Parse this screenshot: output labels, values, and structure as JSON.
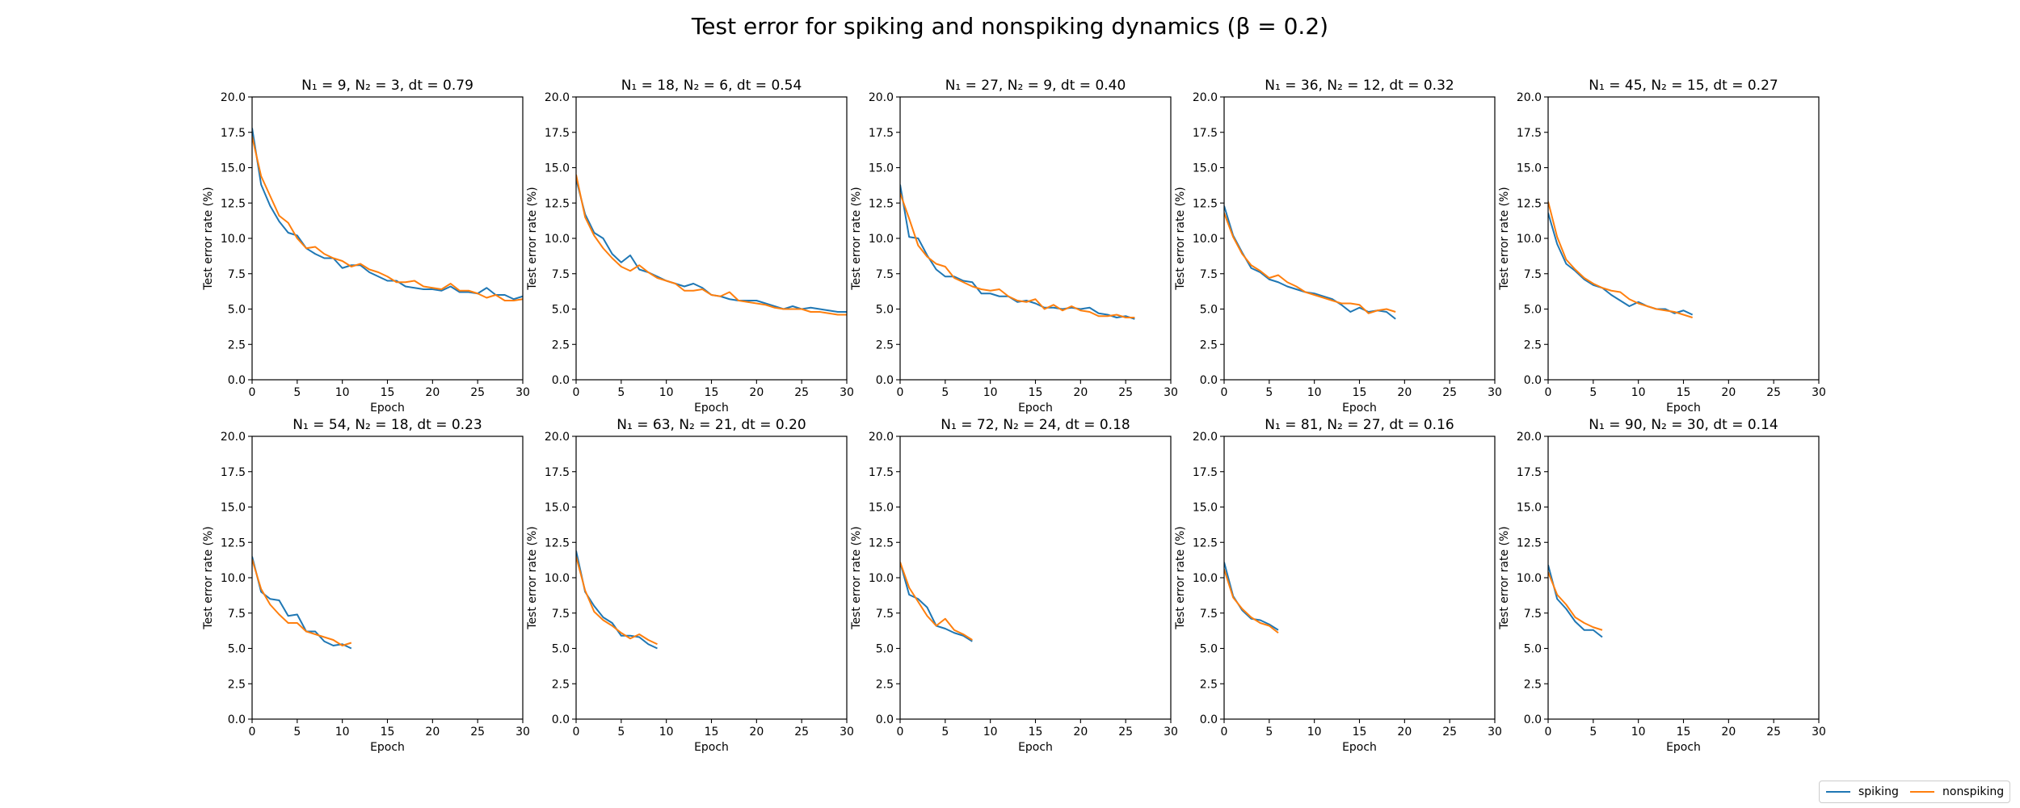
{
  "title": "Test error for spiking and nonspiking dynamics (β = 0.2)",
  "legend": {
    "placement": "lower-right",
    "entries": [
      {
        "name": "spiking",
        "color": "#1f77b4"
      },
      {
        "name": "nonspiking",
        "color": "#ff7f0e"
      }
    ]
  },
  "chart_data": [
    {
      "type": "line",
      "title": "N₁ = 9, N₂ = 3, dt = 0.79",
      "xlabel": "Epoch",
      "ylabel": "Test error rate (%)",
      "xlim": [
        0,
        30
      ],
      "ylim": [
        0,
        20
      ],
      "xticks": [
        0,
        5,
        10,
        15,
        20,
        25,
        30
      ],
      "yticks": [
        0,
        2.5,
        5,
        7.5,
        10,
        12.5,
        15,
        17.5,
        20
      ],
      "yticklabels": [
        "0.0",
        "2.5",
        "5.0",
        "7.5",
        "10.0",
        "12.5",
        "15.0",
        "17.5",
        "20.0"
      ],
      "series": [
        {
          "name": "spiking",
          "values": [
            17.8,
            13.8,
            12.3,
            11.2,
            10.4,
            10.2,
            9.3,
            8.9,
            8.6,
            8.6,
            7.9,
            8.1,
            8.1,
            7.6,
            7.3,
            7.0,
            7.0,
            6.6,
            6.5,
            6.4,
            6.4,
            6.3,
            6.6,
            6.2,
            6.2,
            6.1,
            6.5,
            6.0,
            6.0,
            5.7,
            5.9
          ]
        },
        {
          "name": "nonspiking",
          "values": [
            17.2,
            14.4,
            13.0,
            11.6,
            11.1,
            10.0,
            9.3,
            9.4,
            8.9,
            8.6,
            8.4,
            8.0,
            8.2,
            7.8,
            7.6,
            7.3,
            6.9,
            6.9,
            7.0,
            6.6,
            6.5,
            6.4,
            6.8,
            6.3,
            6.3,
            6.1,
            5.8,
            6.0,
            5.6,
            5.6,
            5.7
          ]
        }
      ]
    },
    {
      "type": "line",
      "title": "N₁ = 18, N₂ = 6, dt = 0.54",
      "xlabel": "Epoch",
      "ylabel": "Test error rate (%)",
      "xlim": [
        0,
        30
      ],
      "ylim": [
        0,
        20
      ],
      "xticks": [
        0,
        5,
        10,
        15,
        20,
        25,
        30
      ],
      "yticks": [
        0,
        2.5,
        5,
        7.5,
        10,
        12.5,
        15,
        17.5,
        20
      ],
      "yticklabels": [
        "0.0",
        "2.5",
        "5.0",
        "7.5",
        "10.0",
        "12.5",
        "15.0",
        "17.5",
        "20.0"
      ],
      "series": [
        {
          "name": "spiking",
          "values": [
            14.2,
            11.7,
            10.4,
            10.0,
            8.9,
            8.3,
            8.8,
            7.8,
            7.6,
            7.3,
            7.0,
            6.8,
            6.6,
            6.8,
            6.5,
            6.0,
            5.9,
            5.7,
            5.6,
            5.6,
            5.6,
            5.4,
            5.2,
            5.0,
            5.2,
            5.0,
            5.1,
            5.0,
            4.9,
            4.8,
            4.8
          ]
        },
        {
          "name": "nonspiking",
          "values": [
            14.5,
            11.5,
            10.2,
            9.3,
            8.6,
            8.0,
            7.7,
            8.1,
            7.6,
            7.2,
            7.0,
            6.8,
            6.3,
            6.3,
            6.4,
            6.0,
            5.9,
            6.2,
            5.6,
            5.5,
            5.4,
            5.3,
            5.1,
            5.0,
            5.0,
            5.0,
            4.8,
            4.8,
            4.7,
            4.6,
            4.6
          ]
        }
      ]
    },
    {
      "type": "line",
      "title": "N₁ = 27, N₂ = 9, dt = 0.40",
      "xlabel": "Epoch",
      "ylabel": "Test error rate (%)",
      "xlim": [
        0,
        30
      ],
      "ylim": [
        0,
        20
      ],
      "xticks": [
        0,
        5,
        10,
        15,
        20,
        25,
        30
      ],
      "yticks": [
        0,
        2.5,
        5,
        7.5,
        10,
        12.5,
        15,
        17.5,
        20
      ],
      "yticklabels": [
        "0.0",
        "2.5",
        "5.0",
        "7.5",
        "10.0",
        "12.5",
        "15.0",
        "17.5",
        "20.0"
      ],
      "series": [
        {
          "name": "spiking",
          "values": [
            13.8,
            10.1,
            10.0,
            8.8,
            7.8,
            7.3,
            7.3,
            7.0,
            6.9,
            6.1,
            6.1,
            5.9,
            5.9,
            5.5,
            5.6,
            5.4,
            5.1,
            5.1,
            5.0,
            5.1,
            5.0,
            5.1,
            4.7,
            4.6,
            4.4,
            4.5,
            4.3
          ]
        },
        {
          "name": "nonspiking",
          "values": [
            13.2,
            11.4,
            9.5,
            8.7,
            8.2,
            8.0,
            7.2,
            6.9,
            6.6,
            6.4,
            6.3,
            6.4,
            5.9,
            5.6,
            5.5,
            5.7,
            5.0,
            5.3,
            4.9,
            5.2,
            4.9,
            4.8,
            4.5,
            4.5,
            4.6,
            4.4,
            4.4
          ]
        }
      ]
    },
    {
      "type": "line",
      "title": "N₁ = 36, N₂ = 12, dt = 0.32",
      "xlabel": "Epoch",
      "ylabel": "Test error rate (%)",
      "xlim": [
        0,
        30
      ],
      "ylim": [
        0,
        20
      ],
      "xticks": [
        0,
        5,
        10,
        15,
        20,
        25,
        30
      ],
      "yticks": [
        0,
        2.5,
        5,
        7.5,
        10,
        12.5,
        15,
        17.5,
        20
      ],
      "yticklabels": [
        "0.0",
        "2.5",
        "5.0",
        "7.5",
        "10.0",
        "12.5",
        "15.0",
        "17.5",
        "20.0"
      ],
      "series": [
        {
          "name": "spiking",
          "values": [
            12.3,
            10.2,
            9.0,
            7.9,
            7.6,
            7.1,
            6.9,
            6.6,
            6.4,
            6.2,
            6.1,
            5.9,
            5.7,
            5.3,
            4.8,
            5.1,
            4.8,
            4.9,
            4.8,
            4.3
          ]
        },
        {
          "name": "nonspiking",
          "values": [
            11.8,
            10.1,
            8.9,
            8.1,
            7.7,
            7.2,
            7.4,
            6.9,
            6.6,
            6.2,
            6.0,
            5.8,
            5.6,
            5.4,
            5.4,
            5.3,
            4.7,
            4.9,
            5.0,
            4.8
          ]
        }
      ]
    },
    {
      "type": "line",
      "title": "N₁ = 45, N₂ = 15, dt = 0.27",
      "xlabel": "Epoch",
      "ylabel": "Test error rate (%)",
      "xlim": [
        0,
        30
      ],
      "ylim": [
        0,
        20
      ],
      "xticks": [
        0,
        5,
        10,
        15,
        20,
        25,
        30
      ],
      "yticks": [
        0,
        2.5,
        5,
        7.5,
        10,
        12.5,
        15,
        17.5,
        20
      ],
      "yticklabels": [
        "0.0",
        "2.5",
        "5.0",
        "7.5",
        "10.0",
        "12.5",
        "15.0",
        "17.5",
        "20.0"
      ],
      "series": [
        {
          "name": "spiking",
          "values": [
            11.8,
            9.6,
            8.2,
            7.7,
            7.1,
            6.7,
            6.5,
            6.0,
            5.6,
            5.2,
            5.5,
            5.2,
            5.0,
            5.0,
            4.7,
            4.9,
            4.6
          ]
        },
        {
          "name": "nonspiking",
          "values": [
            12.6,
            10.1,
            8.5,
            7.8,
            7.2,
            6.8,
            6.5,
            6.3,
            6.2,
            5.7,
            5.4,
            5.2,
            5.0,
            4.9,
            4.8,
            4.6,
            4.4
          ]
        }
      ]
    },
    {
      "type": "line",
      "title": "N₁ = 54, N₂ = 18, dt = 0.23",
      "xlabel": "Epoch",
      "ylabel": "Test error rate (%)",
      "xlim": [
        0,
        30
      ],
      "ylim": [
        0,
        20
      ],
      "xticks": [
        0,
        5,
        10,
        15,
        20,
        25,
        30
      ],
      "yticks": [
        0,
        2.5,
        5,
        7.5,
        10,
        12.5,
        15,
        17.5,
        20
      ],
      "yticklabels": [
        "0.0",
        "2.5",
        "5.0",
        "7.5",
        "10.0",
        "12.5",
        "15.0",
        "17.5",
        "20.0"
      ],
      "series": [
        {
          "name": "spiking",
          "values": [
            11.5,
            9.0,
            8.5,
            8.4,
            7.3,
            7.4,
            6.2,
            6.2,
            5.5,
            5.2,
            5.3,
            5.0
          ]
        },
        {
          "name": "nonspiking",
          "values": [
            11.3,
            9.2,
            8.1,
            7.4,
            6.8,
            6.8,
            6.2,
            6.0,
            5.8,
            5.6,
            5.2,
            5.4
          ]
        }
      ]
    },
    {
      "type": "line",
      "title": "N₁ = 63, N₂ = 21, dt = 0.20",
      "xlabel": "Epoch",
      "ylabel": "Test error rate (%)",
      "xlim": [
        0,
        30
      ],
      "ylim": [
        0,
        20
      ],
      "xticks": [
        0,
        5,
        10,
        15,
        20,
        25,
        30
      ],
      "yticks": [
        0,
        2.5,
        5,
        7.5,
        10,
        12.5,
        15,
        17.5,
        20
      ],
      "yticklabels": [
        "0.0",
        "2.5",
        "5.0",
        "7.5",
        "10.0",
        "12.5",
        "15.0",
        "17.5",
        "20.0"
      ],
      "series": [
        {
          "name": "spiking",
          "values": [
            11.9,
            9.0,
            8.0,
            7.2,
            6.8,
            5.9,
            5.9,
            5.8,
            5.3,
            5.0
          ]
        },
        {
          "name": "nonspiking",
          "values": [
            11.5,
            9.1,
            7.6,
            7.0,
            6.6,
            6.1,
            5.7,
            6.0,
            5.6,
            5.3
          ]
        }
      ]
    },
    {
      "type": "line",
      "title": "N₁ = 72, N₂ = 24, dt = 0.18",
      "xlabel": "Epoch",
      "ylabel": "Test error rate (%)",
      "xlim": [
        0,
        30
      ],
      "ylim": [
        0,
        20
      ],
      "xticks": [
        0,
        5,
        10,
        15,
        20,
        25,
        30
      ],
      "yticks": [
        0,
        2.5,
        5,
        7.5,
        10,
        12.5,
        15,
        17.5,
        20
      ],
      "yticklabels": [
        "0.0",
        "2.5",
        "5.0",
        "7.5",
        "10.0",
        "12.5",
        "15.0",
        "17.5",
        "20.0"
      ],
      "series": [
        {
          "name": "spiking",
          "values": [
            11.1,
            8.8,
            8.5,
            7.9,
            6.6,
            6.4,
            6.1,
            5.9,
            5.5
          ]
        },
        {
          "name": "nonspiking",
          "values": [
            11.1,
            9.3,
            8.3,
            7.3,
            6.6,
            7.1,
            6.3,
            6.0,
            5.6
          ]
        }
      ]
    },
    {
      "type": "line",
      "title": "N₁ = 81, N₂ = 27, dt = 0.16",
      "xlabel": "Epoch",
      "ylabel": "Test error rate (%)",
      "xlim": [
        0,
        30
      ],
      "ylim": [
        0,
        20
      ],
      "xticks": [
        0,
        5,
        10,
        15,
        20,
        25,
        30
      ],
      "yticks": [
        0,
        2.5,
        5,
        7.5,
        10,
        12.5,
        15,
        17.5,
        20
      ],
      "yticklabels": [
        "0.0",
        "2.5",
        "5.0",
        "7.5",
        "10.0",
        "12.5",
        "15.0",
        "17.5",
        "20.0"
      ],
      "series": [
        {
          "name": "spiking",
          "values": [
            11.1,
            8.7,
            7.7,
            7.1,
            7.0,
            6.7,
            6.3
          ]
        },
        {
          "name": "nonspiking",
          "values": [
            10.6,
            8.6,
            7.8,
            7.2,
            6.8,
            6.6,
            6.1
          ]
        }
      ]
    },
    {
      "type": "line",
      "title": "N₁ = 90, N₂ = 30, dt = 0.14",
      "xlabel": "Epoch",
      "ylabel": "Test error rate (%)",
      "xlim": [
        0,
        30
      ],
      "ylim": [
        0,
        20
      ],
      "xticks": [
        0,
        5,
        10,
        15,
        20,
        25,
        30
      ],
      "yticks": [
        0,
        2.5,
        5,
        7.5,
        10,
        12.5,
        15,
        17.5,
        20
      ],
      "yticklabels": [
        "0.0",
        "2.5",
        "5.0",
        "7.5",
        "10.0",
        "12.5",
        "15.0",
        "17.5",
        "20.0"
      ],
      "series": [
        {
          "name": "spiking",
          "values": [
            10.9,
            8.5,
            7.8,
            6.9,
            6.3,
            6.3,
            5.8
          ]
        },
        {
          "name": "nonspiking",
          "values": [
            10.4,
            8.8,
            8.1,
            7.2,
            6.8,
            6.5,
            6.3
          ]
        }
      ]
    }
  ]
}
